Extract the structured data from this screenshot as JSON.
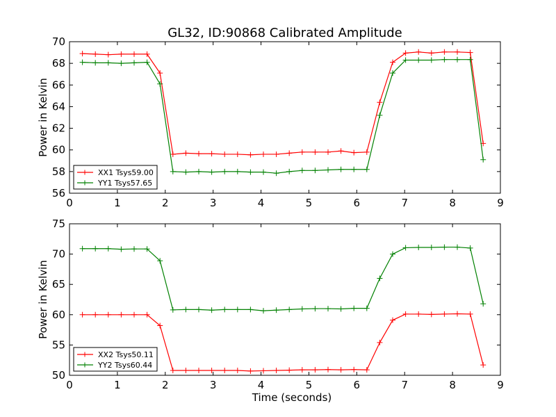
{
  "figure_title": "GL32, ID:90868 Calibrated Amplitude",
  "chart_data": [
    {
      "type": "line",
      "title": "GL32, ID:90868 Calibrated Amplitude",
      "xlabel": "",
      "ylabel": "Power in Kelvin",
      "xlim": [
        0,
        9
      ],
      "ylim": [
        56,
        70
      ],
      "xticks": [
        "0",
        "1",
        "2",
        "3",
        "4",
        "5",
        "6",
        "7",
        "8",
        "9"
      ],
      "yticks": [
        "56",
        "58",
        "60",
        "62",
        "64",
        "66",
        "68",
        "70"
      ],
      "grid": false,
      "legend_position": "lower-left",
      "x": [
        0.27,
        0.54,
        0.81,
        1.08,
        1.35,
        1.62,
        1.89,
        2.16,
        2.43,
        2.7,
        2.97,
        3.24,
        3.51,
        3.78,
        4.05,
        4.32,
        4.59,
        4.86,
        5.13,
        5.4,
        5.67,
        5.94,
        6.21,
        6.48,
        6.75,
        7.02,
        7.29,
        7.56,
        7.83,
        8.1,
        8.37,
        8.64
      ],
      "series": [
        {
          "name": "XX1 Tsys59.00",
          "color": "#ff0000",
          "values": [
            68.9,
            68.85,
            68.8,
            68.85,
            68.85,
            68.85,
            67.1,
            59.6,
            59.7,
            59.65,
            59.65,
            59.6,
            59.6,
            59.55,
            59.6,
            59.6,
            59.7,
            59.8,
            59.8,
            59.8,
            59.9,
            59.75,
            59.8,
            64.4,
            68.1,
            68.95,
            69.05,
            68.95,
            69.05,
            69.05,
            69.0,
            60.6
          ]
        },
        {
          "name": "YY1 Tsys57.65",
          "color": "#008000",
          "values": [
            68.1,
            68.05,
            68.05,
            68.0,
            68.05,
            68.1,
            66.1,
            58.0,
            57.95,
            58.0,
            57.95,
            58.0,
            58.0,
            57.95,
            57.95,
            57.85,
            58.0,
            58.1,
            58.1,
            58.15,
            58.2,
            58.2,
            58.2,
            63.2,
            67.1,
            68.3,
            68.3,
            68.3,
            68.35,
            68.35,
            68.35,
            59.1
          ]
        }
      ]
    },
    {
      "type": "line",
      "title": "",
      "xlabel": "Time (seconds)",
      "ylabel": "Power in Kelvin",
      "xlim": [
        0,
        9
      ],
      "ylim": [
        50,
        75
      ],
      "xticks": [
        "0",
        "1",
        "2",
        "3",
        "4",
        "5",
        "6",
        "7",
        "8",
        "9"
      ],
      "yticks": [
        "50",
        "55",
        "60",
        "65",
        "70",
        "75"
      ],
      "grid": false,
      "legend_position": "lower-left",
      "x": [
        0.27,
        0.54,
        0.81,
        1.08,
        1.35,
        1.62,
        1.89,
        2.16,
        2.43,
        2.7,
        2.97,
        3.24,
        3.51,
        3.78,
        4.05,
        4.32,
        4.59,
        4.86,
        5.13,
        5.4,
        5.67,
        5.94,
        6.21,
        6.48,
        6.75,
        7.02,
        7.29,
        7.56,
        7.83,
        8.1,
        8.37,
        8.64
      ],
      "series": [
        {
          "name": "XX2 Tsys50.11",
          "color": "#ff0000",
          "values": [
            60.0,
            60.0,
            60.0,
            60.0,
            60.0,
            60.0,
            58.2,
            50.8,
            50.8,
            50.8,
            50.8,
            50.8,
            50.8,
            50.7,
            50.75,
            50.8,
            50.85,
            50.9,
            50.9,
            50.95,
            50.9,
            50.95,
            50.9,
            55.4,
            59.1,
            60.1,
            60.1,
            60.05,
            60.1,
            60.15,
            60.1,
            51.7
          ]
        },
        {
          "name": "YY2 Tsys60.44",
          "color": "#008000",
          "values": [
            70.9,
            70.9,
            70.9,
            70.8,
            70.85,
            70.85,
            68.9,
            60.8,
            60.85,
            60.85,
            60.75,
            60.85,
            60.85,
            60.85,
            60.65,
            60.75,
            60.85,
            60.95,
            61.0,
            61.0,
            60.95,
            61.05,
            61.05,
            66.0,
            70.0,
            71.05,
            71.1,
            71.1,
            71.15,
            71.15,
            71.0,
            61.8
          ]
        }
      ]
    }
  ]
}
